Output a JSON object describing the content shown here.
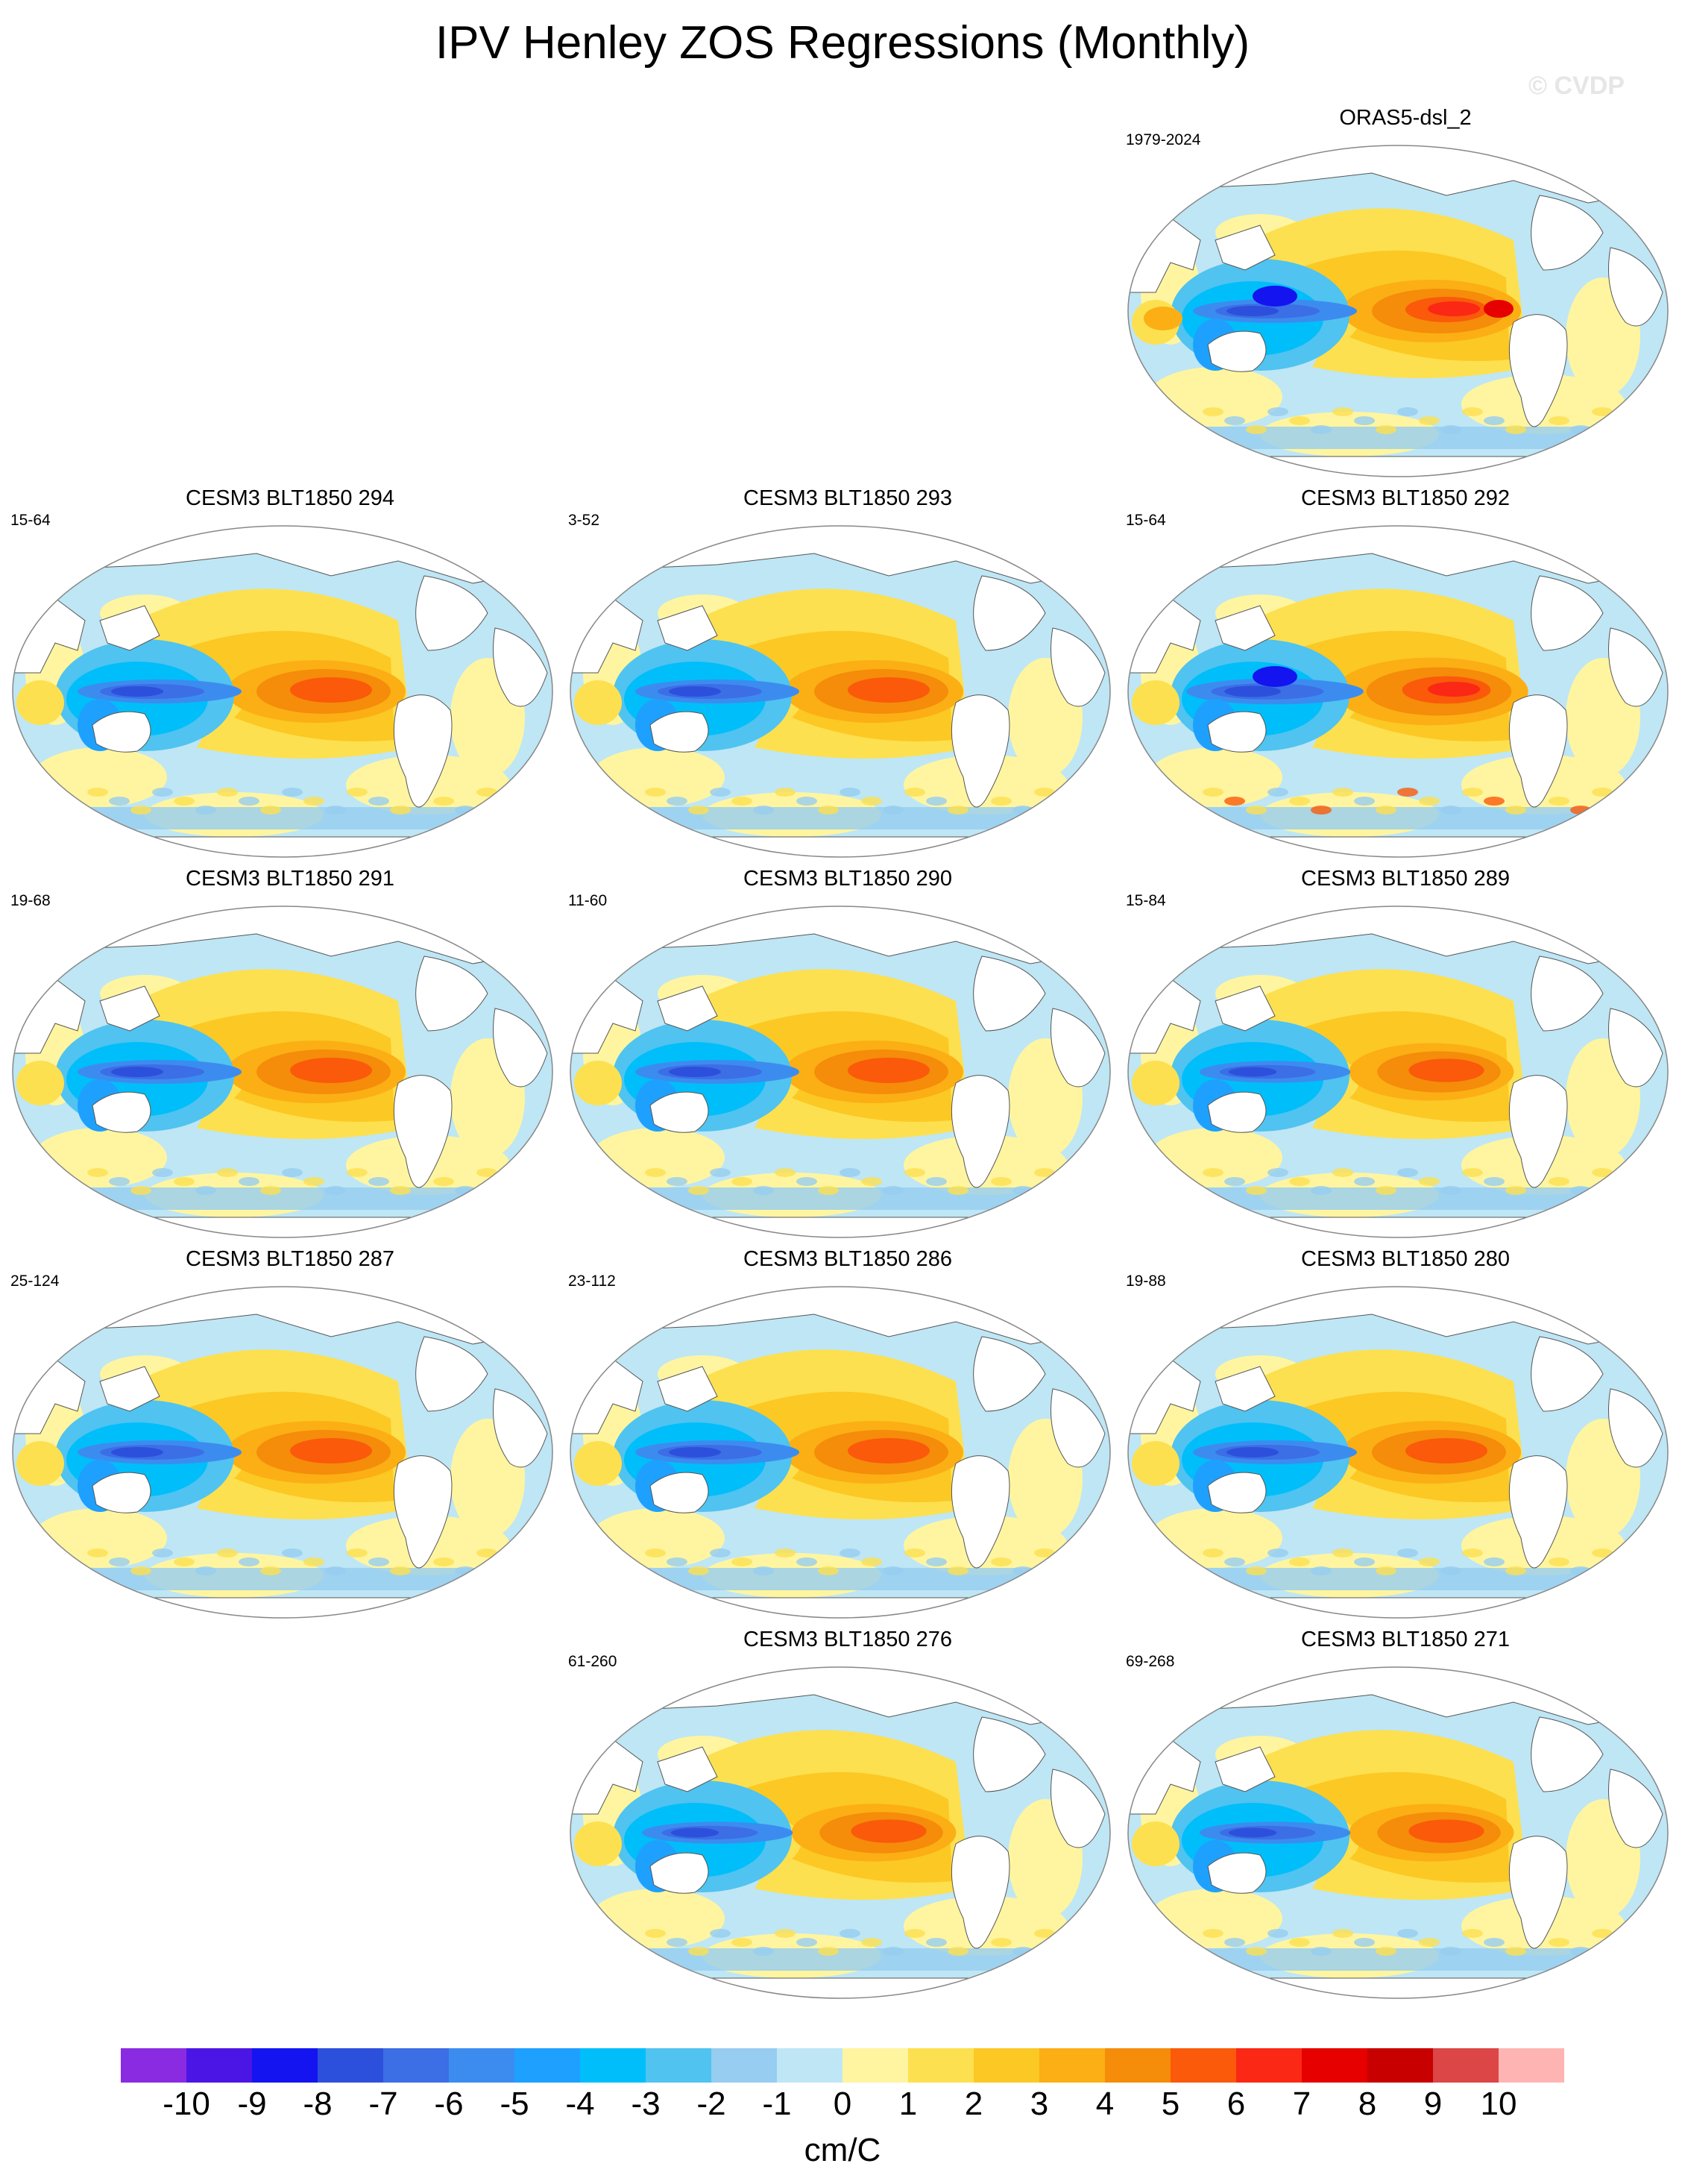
{
  "title": "IPV Henley ZOS Regressions (Monthly)",
  "watermark": "© CVDP",
  "panels": [
    {
      "title": "ORAS5-dsl_2",
      "period": "1979-2024",
      "variant": "obs"
    },
    {
      "title": "CESM3 BLT1850 294",
      "period": "15-64",
      "variant": "a"
    },
    {
      "title": "CESM3 BLT1850 293",
      "period": "3-52",
      "variant": "a"
    },
    {
      "title": "CESM3 BLT1850 292",
      "period": "15-64",
      "variant": "strong"
    },
    {
      "title": "CESM3 BLT1850 291",
      "period": "19-68",
      "variant": "a"
    },
    {
      "title": "CESM3 BLT1850 290",
      "period": "11-60",
      "variant": "b"
    },
    {
      "title": "CESM3 BLT1850 289",
      "period": "15-84",
      "variant": "weak"
    },
    {
      "title": "CESM3 BLT1850 287",
      "period": "25-124",
      "variant": "a"
    },
    {
      "title": "CESM3 BLT1850 286",
      "period": "23-112",
      "variant": "b"
    },
    {
      "title": "CESM3 BLT1850 280",
      "period": "19-88",
      "variant": "a"
    },
    {
      "title": "CESM3 BLT1850 276",
      "period": "61-260",
      "variant": "weak"
    },
    {
      "title": "CESM3 BLT1850 271",
      "period": "69-268",
      "variant": "weak"
    }
  ],
  "chart_data": {
    "type": "heatmap",
    "title": "IPV Henley ZOS Regressions (Monthly)",
    "projection": "global map (Robinson-like), Pacific-centered",
    "colorbar": {
      "units": "cm/C",
      "ticks": [
        "-10",
        "-9",
        "-8",
        "-7",
        "-6",
        "-5",
        "-4",
        "-3",
        "-2",
        "-1",
        "0",
        "1",
        "2",
        "3",
        "4",
        "5",
        "6",
        "7",
        "8",
        "9",
        "10"
      ],
      "levels": [
        -10,
        -9,
        -8,
        -7,
        -6,
        -5,
        -4,
        -3,
        -2,
        -1,
        0,
        1,
        2,
        3,
        4,
        5,
        6,
        7,
        8,
        9,
        10
      ],
      "colors": [
        "#8a2be2",
        "#4b15e6",
        "#1414f0",
        "#2d50dc",
        "#3c6ee6",
        "#3c8cf0",
        "#1ea0ff",
        "#00bef9",
        "#50c3f0",
        "#96cdf0",
        "#bee6f5",
        "#fff5a0",
        "#fde050",
        "#fcc823",
        "#fbaf14",
        "#f58c0a",
        "#fa5a0a",
        "#fa2814",
        "#e60000",
        "#c80000",
        "#dc4646",
        "#ffb4b4"
      ]
    },
    "panels": [
      {
        "name": "ORAS5-dsl_2",
        "period": "1979-2024",
        "pacific_east_max": 7,
        "west_pacific_min": -9
      },
      {
        "name": "CESM3 BLT1850 294",
        "period": "15-64",
        "pacific_east_max": 5,
        "west_pacific_min": -7
      },
      {
        "name": "CESM3 BLT1850 293",
        "period": "3-52",
        "pacific_east_max": 5,
        "west_pacific_min": -7
      },
      {
        "name": "CESM3 BLT1850 292",
        "period": "15-64",
        "pacific_east_max": 7,
        "west_pacific_min": -8
      },
      {
        "name": "CESM3 BLT1850 291",
        "period": "19-68",
        "pacific_east_max": 5,
        "west_pacific_min": -7
      },
      {
        "name": "CESM3 BLT1850 290",
        "period": "11-60",
        "pacific_east_max": 5,
        "west_pacific_min": -7
      },
      {
        "name": "CESM3 BLT1850 289",
        "period": "15-84",
        "pacific_east_max": 4,
        "west_pacific_min": -6
      },
      {
        "name": "CESM3 BLT1850 287",
        "period": "25-124",
        "pacific_east_max": 5,
        "west_pacific_min": -7
      },
      {
        "name": "CESM3 BLT1850 286",
        "period": "23-112",
        "pacific_east_max": 5,
        "west_pacific_min": -6
      },
      {
        "name": "CESM3 BLT1850 280",
        "period": "19-88",
        "pacific_east_max": 5,
        "west_pacific_min": -7
      },
      {
        "name": "CESM3 BLT1850 276",
        "period": "61-260",
        "pacific_east_max": 4,
        "west_pacific_min": -6
      },
      {
        "name": "CESM3 BLT1850 271",
        "period": "69-268",
        "pacific_east_max": 4,
        "west_pacific_min": -6
      }
    ]
  }
}
